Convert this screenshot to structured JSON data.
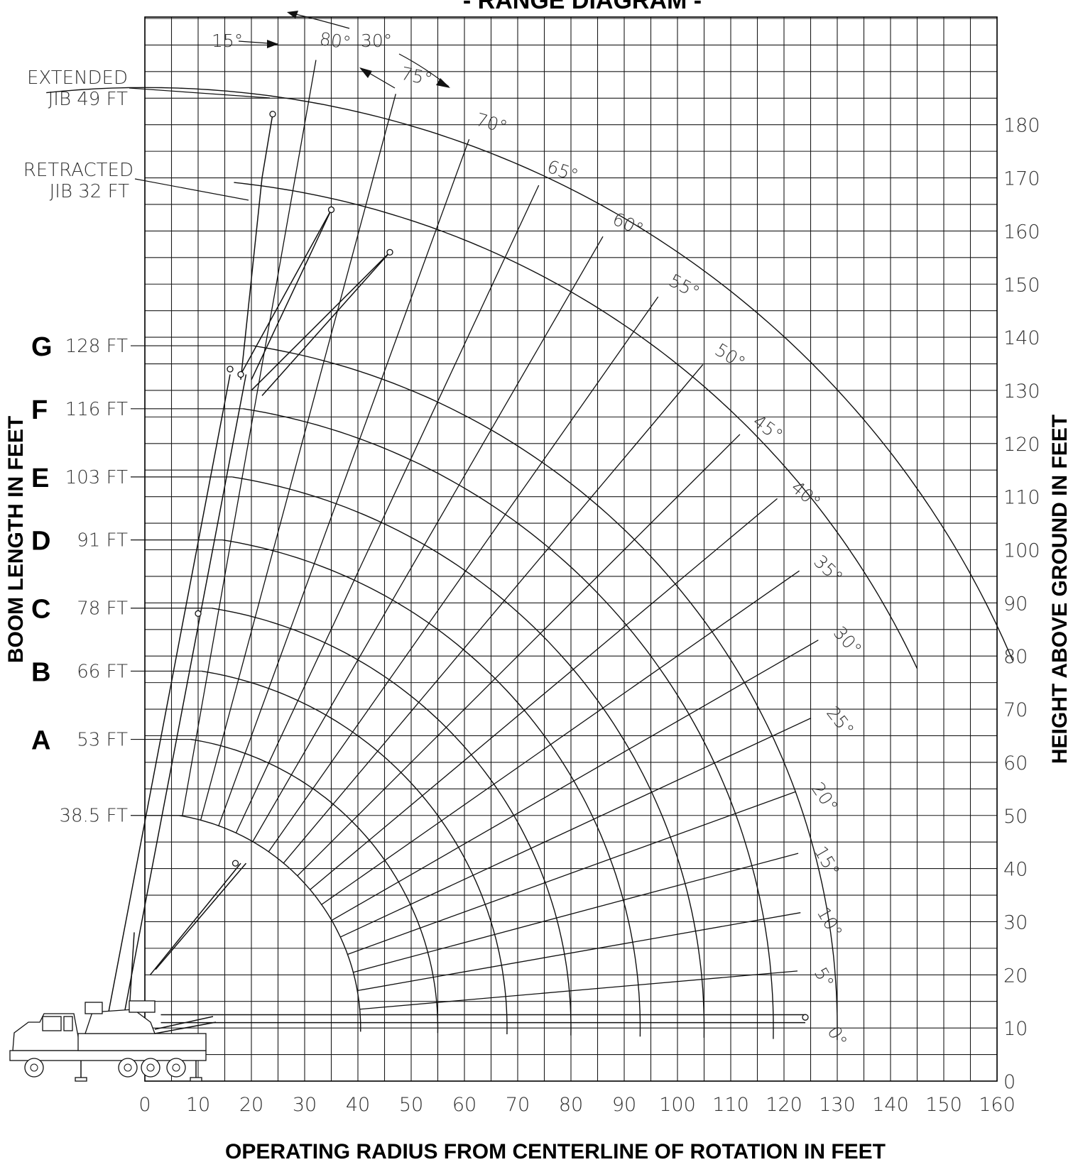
{
  "diagram": {
    "title": "- RANGE DIAGRAM -",
    "x_axis_title": "OPERATING RADIUS FROM CENTERLINE OF ROTATION IN FEET",
    "left_axis_title": "BOOM LENGTH IN FEET",
    "right_axis_title": "HEIGHT ABOVE GROUND IN FEET",
    "x_ticks": [
      "0",
      "10",
      "20",
      "30",
      "40",
      "50",
      "60",
      "70",
      "80",
      "90",
      "100",
      "110",
      "120",
      "130",
      "140",
      "150",
      "160"
    ],
    "y_ticks": [
      "0",
      "10",
      "20",
      "30",
      "40",
      "50",
      "60",
      "70",
      "80",
      "90",
      "100",
      "110",
      "120",
      "130",
      "140",
      "150",
      "160",
      "170",
      "180"
    ],
    "boom_lengths": [
      {
        "letter": "",
        "label": "38.5  FT",
        "length": 38.5
      },
      {
        "letter": "A",
        "label": "53  FT",
        "length": 53
      },
      {
        "letter": "B",
        "label": "66  FT",
        "length": 66
      },
      {
        "letter": "C",
        "label": "78  FT",
        "length": 78
      },
      {
        "letter": "D",
        "label": "91  FT",
        "length": 91
      },
      {
        "letter": "E",
        "label": "103  FT",
        "length": 103
      },
      {
        "letter": "F",
        "label": "116  FT",
        "length": 116
      },
      {
        "letter": "G",
        "label": "128  FT",
        "length": 128
      }
    ],
    "jib_labels": [
      {
        "line1": "EXTENDED",
        "line2": "JIB  49  FT"
      },
      {
        "line1": "RETRACTED",
        "line2": "JIB  32  FT"
      }
    ],
    "boom_angles": [
      "0°",
      "5°",
      "10°",
      "15°",
      "20°",
      "25°",
      "30°",
      "35°",
      "40°",
      "45°",
      "50°",
      "55°",
      "60°",
      "65°",
      "70°",
      "75°",
      "80°"
    ],
    "jib_offsets": [
      "15°",
      "30°"
    ]
  }
}
